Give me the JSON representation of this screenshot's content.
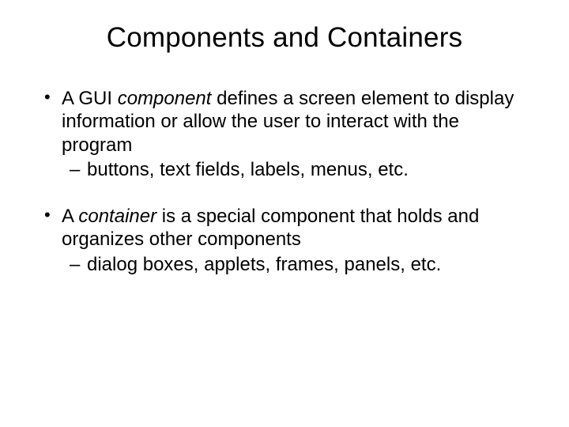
{
  "title": "Components and Containers",
  "bullets": [
    {
      "pre": "A GUI ",
      "em": "component",
      "post": " defines a screen element to display information or allow the user to interact with the program",
      "sub": "buttons, text fields, labels, menus, etc."
    },
    {
      "pre": "A ",
      "em": "container",
      "post": " is a special component that holds and organizes other components",
      "sub": "dialog boxes, applets, frames, panels, etc."
    }
  ]
}
